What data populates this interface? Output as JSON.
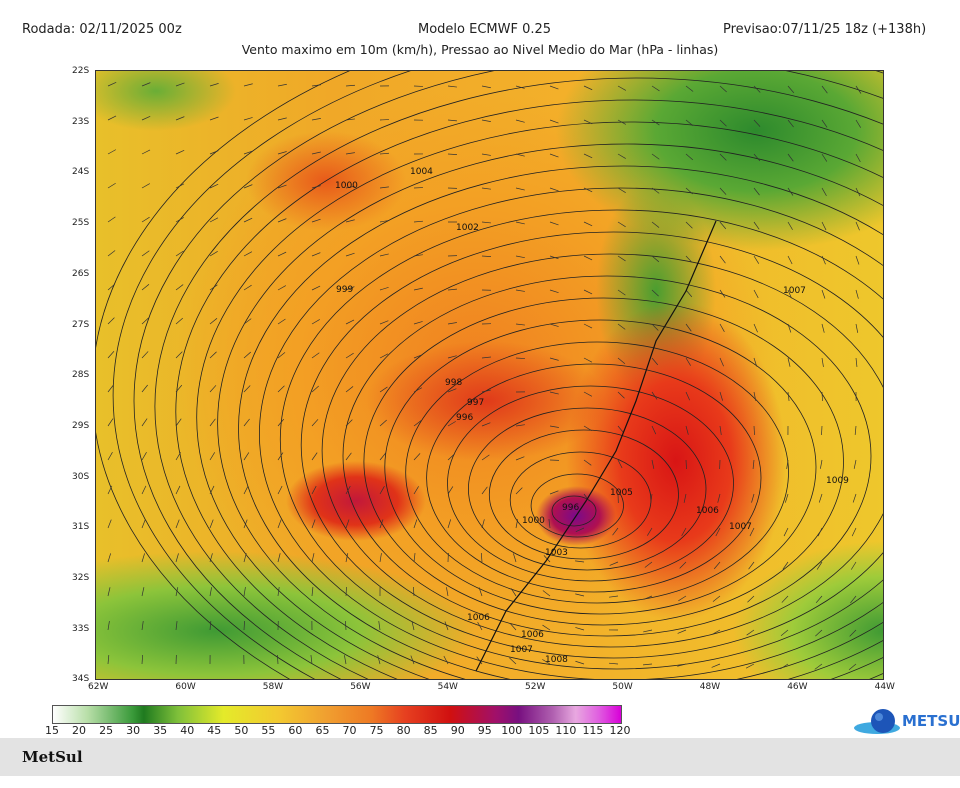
{
  "header": {
    "run": "Rodada: 02/11/2025 00z",
    "model": "Modelo ECMWF 0.25",
    "forecast": "Previsao:07/11/25 18z (+138h)",
    "subtitle": "Vento maximo em 10m (km/h), Pressao ao Nivel Medio do Mar (hPa - linhas)"
  },
  "map": {
    "lat_labels": [
      "22S",
      "23S",
      "24S",
      "25S",
      "26S",
      "27S",
      "28S",
      "29S",
      "30S",
      "31S",
      "32S",
      "33S",
      "34S"
    ],
    "lon_labels": [
      "62W",
      "60W",
      "58W",
      "56W",
      "54W",
      "52W",
      "50W",
      "48W",
      "46W",
      "44W"
    ],
    "isobar_labels": [
      "1000",
      "1004",
      "1002",
      "999",
      "998",
      "997",
      "996",
      "1007",
      "1009",
      "1006",
      "1007",
      "1005",
      "1000",
      "996",
      "1003",
      "1006",
      "1007",
      "1008",
      "1006"
    ]
  },
  "colorbar": {
    "unit": "km/h",
    "ticks": [
      "15",
      "20",
      "25",
      "30",
      "35",
      "40",
      "45",
      "50",
      "55",
      "60",
      "65",
      "70",
      "75",
      "80",
      "85",
      "90",
      "95",
      "100",
      "105",
      "110",
      "115",
      "120"
    ],
    "colors": [
      "#ffffff",
      "#3a9a3a",
      "#e4ea2a",
      "#f0a030",
      "#d01010",
      "#781080",
      "#d800d8"
    ]
  },
  "logo": {
    "text": "METSUL"
  },
  "footer": {
    "brand": "MetSul"
  }
}
